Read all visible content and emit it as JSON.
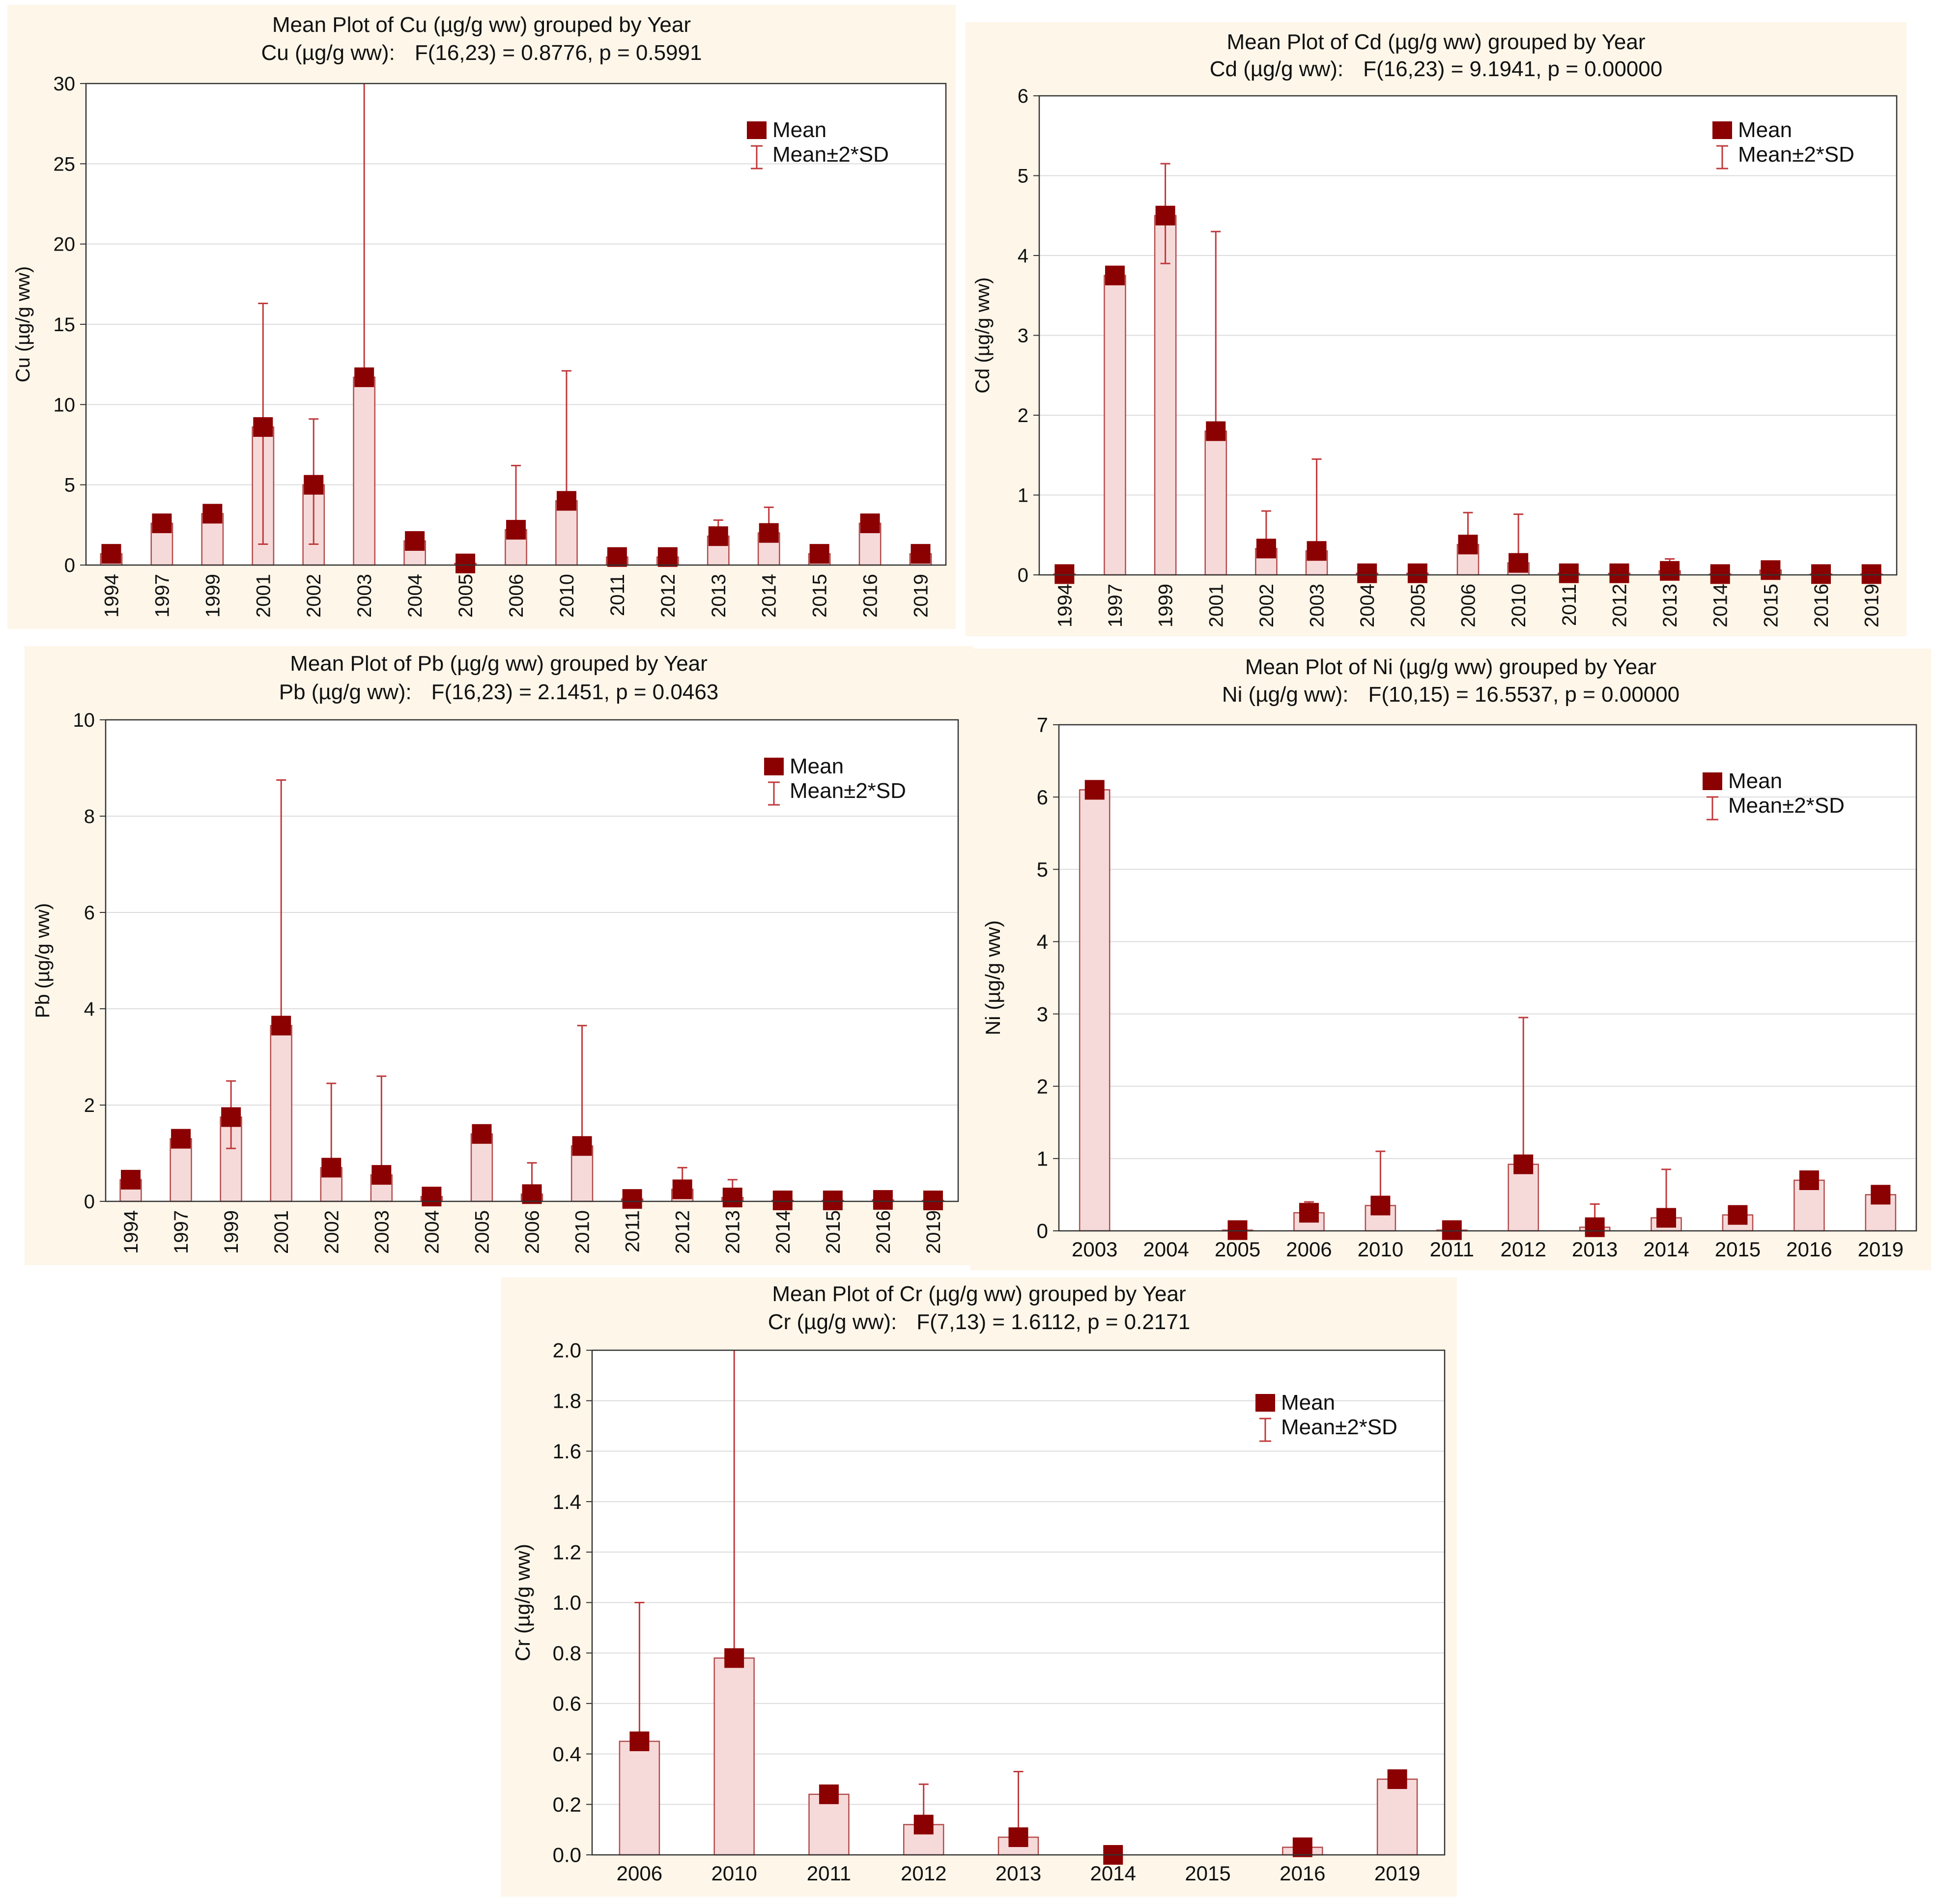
{
  "chart_data": [
    {
      "type": "bar",
      "id": "cu",
      "title": "Mean Plot of Cu (µg/g ww) grouped by  Year",
      "subtitle_label": "Cu (µg/g ww):",
      "subtitle_stats": "F(16,23) = 0.8776, p = 0.5991",
      "xlabel": "",
      "ylabel": "Cu (µg/g ww)",
      "ylim": [
        0,
        30
      ],
      "yticks": [
        0,
        5,
        10,
        15,
        20,
        25,
        30
      ],
      "categories": [
        "1994",
        "1997",
        "1999",
        "2001",
        "2002",
        "2003",
        "2004",
        "2005",
        "2006",
        "2010",
        "2011",
        "2012",
        "2013",
        "2014",
        "2015",
        "2016",
        "2019"
      ],
      "series": [
        {
          "name": "Mean",
          "values": [
            0.7,
            2.6,
            3.2,
            8.6,
            5.0,
            11.7,
            1.5,
            0.1,
            2.2,
            4.0,
            0.5,
            0.5,
            1.8,
            2.0,
            0.7,
            2.6,
            0.7
          ]
        },
        {
          "name": "Mean±2*SD",
          "upper": [
            null,
            null,
            null,
            16.3,
            9.1,
            30,
            null,
            null,
            6.2,
            12.1,
            null,
            null,
            2.8,
            3.6,
            null,
            null,
            null
          ],
          "lower": [
            null,
            null,
            null,
            1.3,
            1.3,
            null,
            null,
            null,
            null,
            null,
            null,
            null,
            null,
            null,
            null,
            null,
            null
          ]
        }
      ],
      "vertical_tick_labels": true,
      "grid": true,
      "legend": {
        "position": "top-right",
        "mean_label": "Mean",
        "sd_label": "Mean±2*SD"
      }
    },
    {
      "type": "bar",
      "id": "cd",
      "title": "Mean Plot of Cd (µg/g ww) grouped by  Year",
      "subtitle_label": "Cd (µg/g ww):",
      "subtitle_stats": "F(16,23) = 9.1941, p = 0.00000",
      "xlabel": "",
      "ylabel": "Cd (µg/g ww)",
      "ylim": [
        0,
        6
      ],
      "yticks": [
        0,
        1,
        2,
        3,
        4,
        5,
        6
      ],
      "categories": [
        "1994",
        "1997",
        "1999",
        "2001",
        "2002",
        "2003",
        "2004",
        "2005",
        "2006",
        "2010",
        "2011",
        "2012",
        "2013",
        "2014",
        "2015",
        "2016",
        "2019"
      ],
      "series": [
        {
          "name": "Mean",
          "values": [
            0.01,
            3.75,
            4.5,
            1.8,
            0.33,
            0.3,
            0.02,
            0.02,
            0.38,
            0.15,
            0.02,
            0.02,
            0.05,
            0.01,
            0.06,
            0.01,
            0.01
          ]
        },
        {
          "name": "Mean±2*SD",
          "upper": [
            null,
            null,
            5.15,
            4.3,
            0.8,
            1.45,
            null,
            null,
            0.78,
            0.76,
            null,
            null,
            0.2,
            null,
            null,
            null,
            null
          ],
          "lower": [
            null,
            null,
            3.9,
            null,
            null,
            null,
            null,
            null,
            null,
            null,
            null,
            null,
            null,
            null,
            null,
            null,
            null
          ]
        }
      ],
      "vertical_tick_labels": true,
      "grid": true,
      "legend": {
        "position": "top-right",
        "mean_label": "Mean",
        "sd_label": "Mean±2*SD"
      }
    },
    {
      "type": "bar",
      "id": "pb",
      "title": "Mean Plot of Pb (µg/g ww) grouped by  Year",
      "subtitle_label": "Pb (µg/g ww):",
      "subtitle_stats": "F(16,23) = 2.1451, p = 0.0463",
      "xlabel": "",
      "ylabel": "Pb (µg/g ww)",
      "ylim": [
        0,
        10
      ],
      "yticks": [
        0,
        2,
        4,
        6,
        8,
        10
      ],
      "categories": [
        "1994",
        "1997",
        "1999",
        "2001",
        "2002",
        "2003",
        "2004",
        "2005",
        "2006",
        "2010",
        "2011",
        "2012",
        "2013",
        "2014",
        "2015",
        "2016",
        "2019"
      ],
      "series": [
        {
          "name": "Mean",
          "values": [
            0.45,
            1.3,
            1.75,
            3.65,
            0.7,
            0.55,
            0.1,
            1.4,
            0.15,
            1.15,
            0.05,
            0.25,
            0.08,
            0.02,
            0.02,
            0.03,
            0.02
          ]
        },
        {
          "name": "Mean±2*SD",
          "upper": [
            null,
            null,
            2.5,
            8.75,
            2.45,
            2.6,
            null,
            null,
            0.8,
            3.65,
            null,
            0.7,
            0.45,
            null,
            null,
            null,
            null
          ],
          "lower": [
            null,
            null,
            1.1,
            null,
            null,
            null,
            null,
            null,
            null,
            null,
            null,
            null,
            null,
            null,
            null,
            null,
            null
          ]
        }
      ],
      "vertical_tick_labels": true,
      "grid": true,
      "legend": {
        "position": "top-right",
        "mean_label": "Mean",
        "sd_label": "Mean±2*SD"
      }
    },
    {
      "type": "bar",
      "id": "ni",
      "title": "Mean Plot of Ni (µg/g ww) grouped by  Year",
      "subtitle_label": "Ni (µg/g ww):",
      "subtitle_stats": "F(10,15) = 16.5537, p = 0.00000",
      "xlabel": "",
      "ylabel": "Ni (µg/g ww)",
      "ylim": [
        0,
        7
      ],
      "yticks": [
        0,
        1,
        2,
        3,
        4,
        5,
        6,
        7
      ],
      "categories": [
        "2003",
        "2004",
        "2005",
        "2006",
        "2010",
        "2011",
        "2012",
        "2013",
        "2014",
        "2015",
        "2016",
        "2019"
      ],
      "series": [
        {
          "name": "Mean",
          "values": [
            6.1,
            null,
            0.01,
            0.25,
            0.35,
            0.01,
            0.92,
            0.05,
            0.18,
            0.22,
            0.7,
            0.5
          ]
        },
        {
          "name": "Mean±2*SD",
          "upper": [
            null,
            null,
            null,
            0.4,
            1.1,
            null,
            2.95,
            0.37,
            0.85,
            null,
            null,
            null
          ],
          "lower": [
            null,
            null,
            null,
            null,
            null,
            null,
            null,
            null,
            null,
            null,
            null,
            null
          ]
        }
      ],
      "vertical_tick_labels": false,
      "grid": true,
      "legend": {
        "position": "top-right",
        "mean_label": "Mean",
        "sd_label": "Mean±2*SD"
      }
    },
    {
      "type": "bar",
      "id": "cr",
      "title": "Mean Plot of Cr (µg/g ww) grouped by  Year",
      "subtitle_label": "Cr (µg/g ww):",
      "subtitle_stats": "F(7,13) = 1.6112, p = 0.2171",
      "xlabel": "",
      "ylabel": "Cr (µg/g ww)",
      "ylim": [
        0,
        2.0
      ],
      "yticks": [
        "0.0",
        "0.2",
        "0.4",
        "0.6",
        "0.8",
        "1.0",
        "1.2",
        "1.4",
        "1.6",
        "1.8",
        "2.0"
      ],
      "categories": [
        "2006",
        "2010",
        "2011",
        "2012",
        "2013",
        "2014",
        "2015",
        "2016",
        "2019"
      ],
      "series": [
        {
          "name": "Mean",
          "values": [
            0.45,
            0.78,
            0.24,
            0.12,
            0.07,
            0.0,
            null,
            0.03,
            0.3
          ]
        },
        {
          "name": "Mean±2*SD",
          "upper": [
            1.0,
            2.0,
            null,
            0.28,
            0.33,
            null,
            null,
            null,
            null
          ],
          "lower": [
            null,
            null,
            null,
            null,
            null,
            null,
            null,
            null,
            null
          ]
        }
      ],
      "vertical_tick_labels": false,
      "grid": true,
      "legend": {
        "position": "top-right",
        "mean_label": "Mean",
        "sd_label": "Mean±2*SD"
      }
    }
  ],
  "colors": {
    "marker": "#8b0000",
    "bar_fill": "#f6dada",
    "bar_stroke": "#b44a4a",
    "error": "#c0393b",
    "panel_bg": "#fdf6e9",
    "plot_bg": "#ffffff",
    "grid": "#dcdcdc",
    "axis": "#333333"
  }
}
